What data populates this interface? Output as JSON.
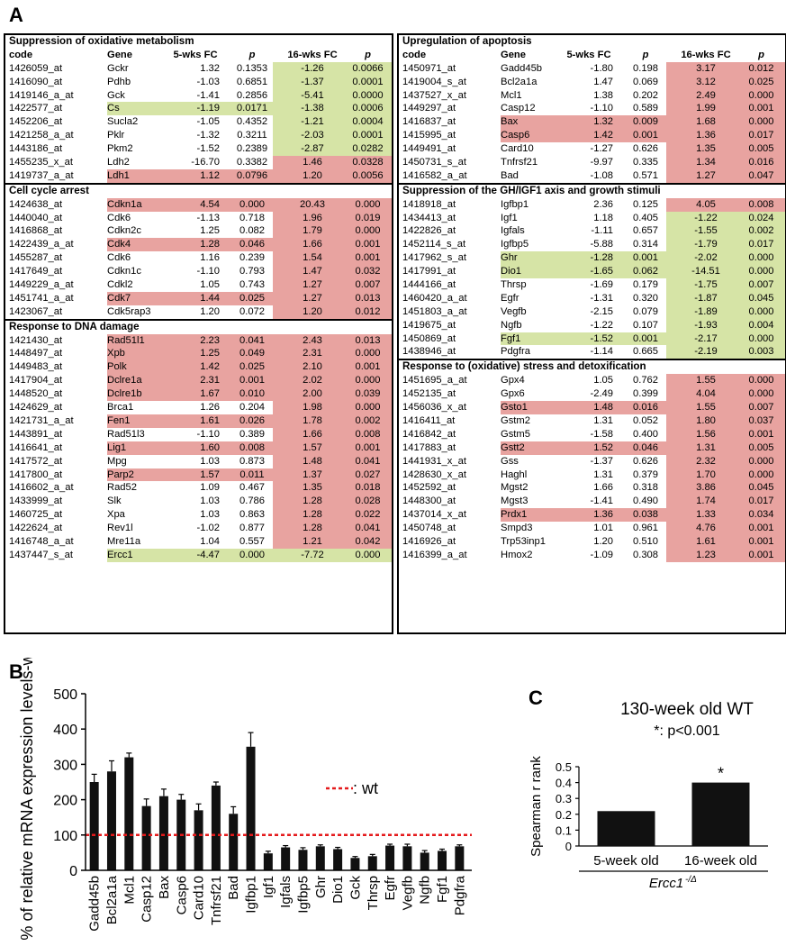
{
  "panel_labels": {
    "a": "A",
    "b": "B",
    "c": "C"
  },
  "table_left": {
    "sections": [
      {
        "title": "Suppression of oxidative metabolism",
        "header": [
          "code",
          "Gene",
          "5-wks FC",
          "p",
          "16-wks FC",
          "p"
        ],
        "rows": [
          [
            "1426059_at",
            "Gckr",
            "1.32",
            "0.1353",
            "-1.26",
            "0.0066",
            "",
            "G"
          ],
          [
            "1416090_at",
            "Pdhb",
            "-1.03",
            "0.6851",
            "-1.37",
            "0.0001",
            "",
            "G"
          ],
          [
            "1419146_a_at",
            "Gck",
            "-1.41",
            "0.2856",
            "-5.41",
            "0.0000",
            "",
            "G"
          ],
          [
            "1422577_at",
            "Cs",
            "-1.19",
            "0.0171",
            "-1.38",
            "0.0006",
            "G",
            "G"
          ],
          [
            "1452206_at",
            "Sucla2",
            "-1.05",
            "0.4352",
            "-1.21",
            "0.0004",
            "",
            "G"
          ],
          [
            "1421258_a_at",
            "Pklr",
            "-1.32",
            "0.3211",
            "-2.03",
            "0.0001",
            "",
            "G"
          ],
          [
            "1443186_at",
            "Pkm2",
            "-1.52",
            "0.2389",
            "-2.87",
            "0.0282",
            "",
            "G"
          ],
          [
            "1455235_x_at",
            "Ldh2",
            "-16.70",
            "0.3382",
            "1.46",
            "0.0328",
            "",
            "R"
          ],
          [
            "1419737_a_at",
            "Ldh1",
            "1.12",
            "0.0796",
            "1.20",
            "0.0056",
            "R",
            "R"
          ]
        ]
      },
      {
        "title": "Cell cycle arrest",
        "header": null,
        "rows": [
          [
            "1424638_at",
            "Cdkn1a",
            "4.54",
            "0.000",
            "20.43",
            "0.000",
            "R",
            "R"
          ],
          [
            "1440040_at",
            "Cdk6",
            "-1.13",
            "0.718",
            "1.96",
            "0.019",
            "",
            "R"
          ],
          [
            "1416868_at",
            "Cdkn2c",
            "1.25",
            "0.082",
            "1.79",
            "0.000",
            "",
            "R"
          ],
          [
            "1422439_a_at",
            "Cdk4",
            "1.28",
            "0.046",
            "1.66",
            "0.001",
            "R",
            "R"
          ],
          [
            "1455287_at",
            "Cdk6",
            "1.16",
            "0.239",
            "1.54",
            "0.001",
            "",
            "R"
          ],
          [
            "1417649_at",
            "Cdkn1c",
            "-1.10",
            "0.793",
            "1.47",
            "0.032",
            "",
            "R"
          ],
          [
            "1449229_a_at",
            "Cdkl2",
            "1.05",
            "0.743",
            "1.27",
            "0.007",
            "",
            "R"
          ],
          [
            "1451741_a_at",
            "Cdk7",
            "1.44",
            "0.025",
            "1.27",
            "0.013",
            "R",
            "R"
          ],
          [
            "1423067_at",
            "Cdk5rap3",
            "1.20",
            "0.072",
            "1.20",
            "0.012",
            "",
            "R"
          ]
        ]
      },
      {
        "title": "Response to DNA damage",
        "header": null,
        "rows": [
          [
            "1421430_at",
            "Rad51l1",
            "2.23",
            "0.041",
            "2.43",
            "0.013",
            "R",
            "R"
          ],
          [
            "1448497_at",
            "Xpb",
            "1.25",
            "0.049",
            "2.31",
            "0.000",
            "R",
            "R"
          ],
          [
            "1449483_at",
            "Polk",
            "1.42",
            "0.025",
            "2.10",
            "0.001",
            "R",
            "R"
          ],
          [
            "1417904_at",
            "Dclre1a",
            "2.31",
            "0.001",
            "2.02",
            "0.000",
            "R",
            "R"
          ],
          [
            "1448520_at",
            "Dclre1b",
            "1.67",
            "0.010",
            "2.00",
            "0.039",
            "R",
            "R"
          ],
          [
            "1424629_at",
            "Brca1",
            "1.26",
            "0.204",
            "1.98",
            "0.000",
            "",
            "R"
          ],
          [
            "1421731_a_at",
            "Fen1",
            "1.61",
            "0.026",
            "1.78",
            "0.002",
            "R",
            "R"
          ],
          [
            "1443891_at",
            "Rad51l3",
            "-1.10",
            "0.389",
            "1.66",
            "0.008",
            "",
            "R"
          ],
          [
            "1416641_at",
            "Lig1",
            "1.60",
            "0.008",
            "1.57",
            "0.001",
            "R",
            "R"
          ],
          [
            "1417572_at",
            "Mpg",
            "1.03",
            "0.873",
            "1.48",
            "0.041",
            "",
            "R"
          ],
          [
            "1417800_at",
            "Parp2",
            "1.57",
            "0.011",
            "1.37",
            "0.027",
            "R",
            "R"
          ],
          [
            "1416602_a_at",
            "Rad52",
            "1.09",
            "0.467",
            "1.35",
            "0.018",
            "",
            "R"
          ],
          [
            "1433999_at",
            "Slk",
            "1.03",
            "0.786",
            "1.28",
            "0.028",
            "",
            "R"
          ],
          [
            "1460725_at",
            "Xpa",
            "1.03",
            "0.863",
            "1.28",
            "0.022",
            "",
            "R"
          ],
          [
            "1422624_at",
            "Rev1l",
            "-1.02",
            "0.877",
            "1.28",
            "0.041",
            "",
            "R"
          ],
          [
            "1416748_a_at",
            "Mre11a",
            "1.04",
            "0.557",
            "1.21",
            "0.042",
            "",
            "R"
          ],
          [
            "1437447_s_at",
            "Ercc1",
            "-4.47",
            "0.000",
            "-7.72",
            "0.000",
            "G",
            "G"
          ]
        ]
      }
    ]
  },
  "table_right": {
    "sections": [
      {
        "title": "Upregulation of apoptosis",
        "header": [
          "code",
          "Gene",
          "5-wks FC",
          "p",
          "16-wks FC",
          "p"
        ],
        "rows": [
          [
            "1450971_at",
            "Gadd45b",
            "-1.80",
            "0.198",
            "3.17",
            "0.012",
            "",
            "R"
          ],
          [
            "1419004_s_at",
            "Bcl2a1a",
            "1.47",
            "0.069",
            "3.12",
            "0.025",
            "",
            "R"
          ],
          [
            "1437527_x_at",
            "Mcl1",
            "1.38",
            "0.202",
            "2.49",
            "0.000",
            "",
            "R"
          ],
          [
            "1449297_at",
            "Casp12",
            "-1.10",
            "0.589",
            "1.99",
            "0.001",
            "",
            "R"
          ],
          [
            "1416837_at",
            "Bax",
            "1.32",
            "0.009",
            "1.68",
            "0.000",
            "R",
            "R"
          ],
          [
            "1415995_at",
            "Casp6",
            "1.42",
            "0.001",
            "1.36",
            "0.017",
            "R",
            "R"
          ],
          [
            "1449491_at",
            "Card10",
            "-1.27",
            "0.626",
            "1.35",
            "0.005",
            "",
            "R"
          ],
          [
            "1450731_s_at",
            "Tnfrsf21",
            "-9.97",
            "0.335",
            "1.34",
            "0.016",
            "",
            "R"
          ],
          [
            "1416582_a_at",
            "Bad",
            "-1.08",
            "0.571",
            "1.27",
            "0.047",
            "",
            "R"
          ]
        ]
      },
      {
        "title": "Suppression of the GH/IGF1 axis and growth stimuli",
        "header": null,
        "rows": [
          [
            "1418918_at",
            "Igfbp1",
            "2.36",
            "0.125",
            "4.05",
            "0.008",
            "",
            "R"
          ],
          [
            "1434413_at",
            "Igf1",
            "1.18",
            "0.405",
            "-1.22",
            "0.024",
            "",
            "G"
          ],
          [
            "1422826_at",
            "Igfals",
            "-1.11",
            "0.657",
            "-1.55",
            "0.002",
            "",
            "G"
          ],
          [
            "1452114_s_at",
            "Igfbp5",
            "-5.88",
            "0.314",
            "-1.79",
            "0.017",
            "",
            "G"
          ],
          [
            "1417962_s_at",
            "Ghr",
            "-1.28",
            "0.001",
            "-2.02",
            "0.000",
            "G",
            "G"
          ],
          [
            "1417991_at",
            "Dio1",
            "-1.65",
            "0.062",
            "-14.51",
            "0.000",
            "G",
            "G"
          ],
          [
            "1444166_at",
            "Thrsp",
            "-1.69",
            "0.179",
            "-1.75",
            "0.007",
            "",
            "G"
          ],
          [
            "1460420_a_at",
            "Egfr",
            "-1.31",
            "0.320",
            "-1.87",
            "0.045",
            "",
            "G"
          ],
          [
            "1451803_a_at",
            "Vegfb",
            "-2.15",
            "0.079",
            "-1.89",
            "0.000",
            "",
            "G"
          ],
          [
            "1419675_at",
            "Ngfb",
            "-1.22",
            "0.107",
            "-1.93",
            "0.004",
            "",
            "G"
          ],
          [
            "1450869_at",
            "Fgf1",
            "-1.52",
            "0.001",
            "-2.17",
            "0.000",
            "G",
            "G"
          ],
          [
            "1438946_at",
            "Pdgfra",
            "-1.14",
            "0.665",
            "-2.19",
            "0.003",
            "",
            "G"
          ]
        ]
      },
      {
        "title": "Response to (oxidative) stress and detoxification",
        "header": null,
        "rows": [
          [
            "1451695_a_at",
            "Gpx4",
            "1.05",
            "0.762",
            "1.55",
            "0.000",
            "",
            "R"
          ],
          [
            "1452135_at",
            "Gpx6",
            "-2.49",
            "0.399",
            "4.04",
            "0.000",
            "",
            "R"
          ],
          [
            "1456036_x_at",
            "Gsto1",
            "1.48",
            "0.016",
            "1.55",
            "0.007",
            "R",
            "R"
          ],
          [
            "1416411_at",
            "Gstm2",
            "1.31",
            "0.052",
            "1.80",
            "0.037",
            "",
            "R"
          ],
          [
            "1416842_at",
            "Gstm5",
            "-1.58",
            "0.400",
            "1.56",
            "0.001",
            "",
            "R"
          ],
          [
            "1417883_at",
            "Gstt2",
            "1.52",
            "0.046",
            "1.31",
            "0.005",
            "R",
            "R"
          ],
          [
            "1441931_x_at",
            "Gss",
            "-1.37",
            "0.626",
            "2.32",
            "0.000",
            "",
            "R"
          ],
          [
            "1428630_x_at",
            "Haghl",
            "1.31",
            "0.379",
            "1.70",
            "0.000",
            "",
            "R"
          ],
          [
            "1452592_at",
            "Mgst2",
            "1.66",
            "0.318",
            "3.86",
            "0.045",
            "",
            "R"
          ],
          [
            "1448300_at",
            "Mgst3",
            "-1.41",
            "0.490",
            "1.74",
            "0.017",
            "",
            "R"
          ],
          [
            "1437014_x_at",
            "Prdx1",
            "1.36",
            "0.038",
            "1.33",
            "0.034",
            "R",
            "R"
          ],
          [
            "1450748_at",
            "Smpd3",
            "1.01",
            "0.961",
            "4.76",
            "0.001",
            "",
            "R"
          ],
          [
            "1416926_at",
            "Trp53inp1",
            "1.20",
            "0.510",
            "1.61",
            "0.001",
            "",
            "R"
          ],
          [
            "1416399_a_at",
            "Hmox2",
            "-1.09",
            "0.308",
            "1.23",
            "0.001",
            "",
            "R"
          ]
        ]
      }
    ]
  },
  "colors": {
    "red_cell": "#e8a3a0",
    "green_cell": "#d6e4a6",
    "wt_line": "#e41a1c",
    "bar": "#111111"
  },
  "chart_data": [
    {
      "type": "bar",
      "panel": "B",
      "categories": [
        "Gadd45b",
        "Bcl2a1a",
        "Mcl1",
        "Casp12",
        "Bax",
        "Casp6",
        "Card10",
        "Tnfrsf21",
        "Bad",
        "Igfbp1",
        "Igf1",
        "Igfals",
        "Igfbp5",
        "Ghr",
        "Dio1",
        "Gck",
        "Thrsp",
        "Egfr",
        "Vegfb",
        "Ngfb",
        "Fgf1",
        "Pdgfra"
      ],
      "values": [
        250,
        280,
        320,
        182,
        210,
        200,
        170,
        240,
        160,
        350,
        48,
        65,
        58,
        68,
        60,
        35,
        40,
        70,
        68,
        50,
        55,
        68
      ],
      "errors": [
        22,
        30,
        12,
        20,
        20,
        15,
        18,
        10,
        20,
        40,
        6,
        5,
        6,
        4,
        5,
        4,
        5,
        4,
        6,
        6,
        5,
        4
      ],
      "ylabel": "% of relative mRNA expression levels-wt",
      "ylim": [
        0,
        500
      ],
      "yticks": [
        "0",
        "100",
        "200",
        "300",
        "400",
        "500"
      ],
      "reference_line": {
        "value": 100,
        "label": ": wt"
      }
    },
    {
      "type": "bar",
      "panel": "C",
      "title": "130-week old WT",
      "subtitle": "*: p<0.001",
      "categories": [
        "5-week old",
        "16-week old"
      ],
      "values": [
        0.22,
        0.4
      ],
      "annotations": [
        "",
        "*"
      ],
      "ylabel": "Spearman r rank",
      "ylim": [
        0,
        0.5
      ],
      "yticks": [
        "0",
        "0.1",
        "0.2",
        "0.3",
        "0.4",
        "0.5"
      ],
      "group_label": "Ercc1",
      "group_label_sup": "-/Δ"
    }
  ]
}
